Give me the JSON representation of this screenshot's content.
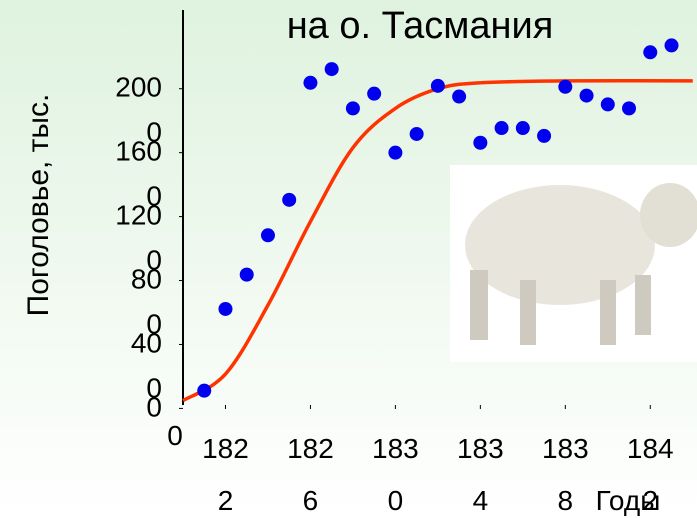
{
  "chart_data": {
    "type": "scatter",
    "title": "на о. Тасмания",
    "y_label": "Поголовье, тыс.",
    "x_label": "Годы",
    "origin_label": "0",
    "x": [
      1821,
      1822,
      1823,
      1824,
      1825,
      1826,
      1827,
      1828,
      1829,
      1830,
      1831,
      1832,
      1833,
      1834,
      1835,
      1836,
      1837,
      1838,
      1839,
      1840,
      1841,
      1842,
      1843
    ],
    "values": [
      111,
      622,
      837,
      1083,
      1305,
      2037,
      2123,
      1877,
      1969,
      1600,
      1717,
      2018,
      1951,
      1662,
      1754,
      1754,
      1705,
      2012,
      1957,
      1902,
      1877,
      2228,
      2271
    ],
    "color": "#0000ee",
    "fit": {
      "color": "#ff3300",
      "x": [
        1820,
        1822,
        1824,
        1826,
        1828,
        1830,
        1832,
        1834,
        1838,
        1844
      ],
      "values": [
        49,
        215,
        646,
        1169,
        1631,
        1877,
        2000,
        2037,
        2049,
        2049
      ]
    },
    "xlim": [
      1820,
      1844.2
    ],
    "ylim": [
      -60,
      2480
    ],
    "xticks": [
      1822,
      1826,
      1830,
      1834,
      1838,
      1842
    ],
    "yticks": [
      0,
      400,
      800,
      1200,
      1600,
      2000
    ]
  }
}
